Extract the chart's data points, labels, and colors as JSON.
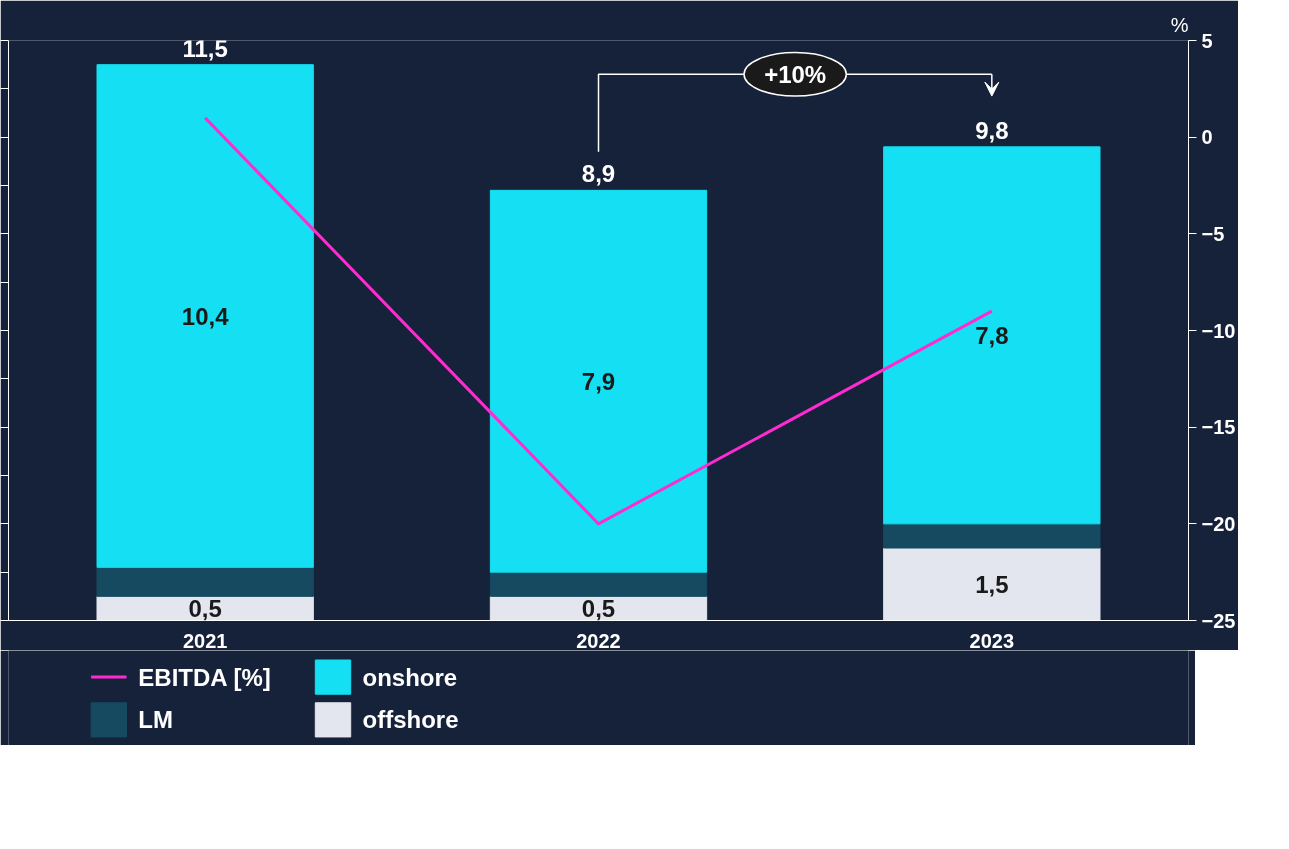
{
  "chart_data": {
    "type": "bar",
    "stacked": true,
    "categories": [
      "2021",
      "2022",
      "2023"
    ],
    "series": [
      {
        "name": "offshore",
        "color": "#e3e6ee",
        "values": [
          0.5,
          0.5,
          1.5
        ],
        "value_labels": [
          "0,5",
          "0,5",
          "1,5"
        ]
      },
      {
        "name": "LM",
        "color": "#154a60",
        "values": [
          0.6,
          0.5,
          0.5
        ]
      },
      {
        "name": "onshore",
        "color": "#15dff2",
        "values": [
          10.4,
          7.9,
          7.8
        ],
        "value_labels": [
          "10,4",
          "7,9",
          "7,8"
        ]
      },
      {
        "name": "EBITDA [%]",
        "type": "line",
        "axis": "y2",
        "color": "#ff2bd1",
        "values": [
          1,
          -20,
          -9
        ]
      }
    ],
    "totals": [
      "11,5",
      "8,9",
      "9,8"
    ],
    "ylim": [
      0,
      12
    ],
    "yticks": [
      {
        "value": 0,
        "label": null
      },
      {
        "value": 1,
        "label": null
      },
      {
        "value": 2,
        "label": null
      },
      {
        "value": 3,
        "label": null
      },
      {
        "value": 4,
        "label": null
      },
      {
        "value": 5,
        "label": null
      },
      {
        "value": 6,
        "label": null
      },
      {
        "value": 7,
        "label": null
      },
      {
        "value": 8,
        "label": null
      },
      {
        "value": 9,
        "label": null
      },
      {
        "value": 10,
        "label": null
      },
      {
        "value": 11,
        "label": null
      },
      {
        "value": 12,
        "label": null
      }
    ],
    "y2lim": [
      -25,
      5
    ],
    "y2ticks": [
      -25,
      -20,
      -15,
      -10,
      -5,
      0,
      5
    ],
    "y2label": "%",
    "annotations": [
      "+10%"
    ],
    "grid": false,
    "legend": "bottom"
  }
}
